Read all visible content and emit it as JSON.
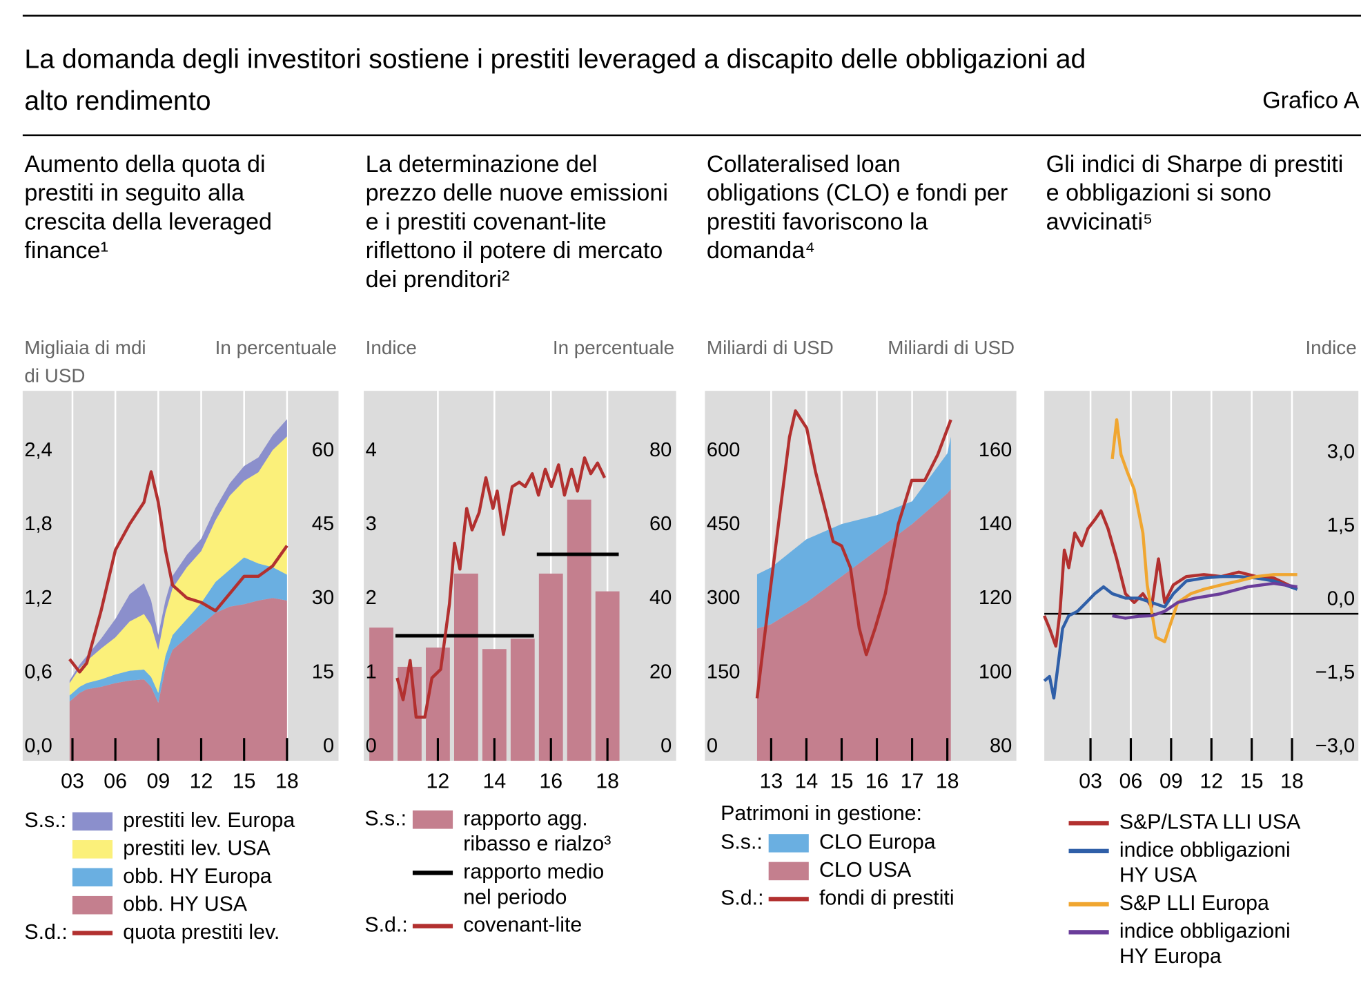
{
  "title": "La domanda degli investitori sostiene i prestiti leveraged a discapito delle obbligazioni ad alto rendimento",
  "label": "Grafico A",
  "chart_data": [
    {
      "type": "stacked-area",
      "title": "Aumento della quota di prestiti in seguito alla crescita della leveraged finance¹",
      "y_label": "Migliaia di mdi di USD",
      "y2_label": "In percentuale",
      "xlim": [
        1999.52,
        2021.6
      ],
      "xticks": [
        {
          "value": 2003,
          "label": "03"
        },
        {
          "value": 2006,
          "label": "06"
        },
        {
          "value": 2009,
          "label": "09"
        },
        {
          "value": 2012,
          "label": "12"
        },
        {
          "value": 2015,
          "label": "15"
        },
        {
          "value": 2018,
          "label": "18"
        }
      ],
      "ylim": [
        0,
        3.0
      ],
      "yticks": [
        {
          "value": 0,
          "label": "0,0"
        },
        {
          "value": 0.6,
          "label": "0,6"
        },
        {
          "value": 1.2,
          "label": "1,2"
        },
        {
          "value": 1.8,
          "label": "1,8"
        },
        {
          "value": 2.4,
          "label": "2,4"
        }
      ],
      "y2lim": [
        0,
        75
      ],
      "y2ticks": [
        0,
        15,
        30,
        45,
        60
      ],
      "grid": true,
      "legend_prefixes": {
        "y": "S.s.:",
        "y2": "S.d.:"
      },
      "series": [
        {
          "name": "prestiti lev. Europa",
          "kind": "area",
          "color": "#8b8fcc",
          "x": [
            2002.8,
            2003.5,
            2004,
            2005,
            2006,
            2007,
            2008,
            2008.5,
            2009,
            2009.5,
            2010,
            2011,
            2012,
            2013,
            2014,
            2015,
            2016,
            2017,
            2018
          ],
          "values": [
            0.02,
            0.03,
            0.04,
            0.08,
            0.15,
            0.22,
            0.25,
            0.2,
            0.12,
            0.1,
            0.1,
            0.1,
            0.1,
            0.1,
            0.1,
            0.12,
            0.12,
            0.12,
            0.14
          ]
        },
        {
          "name": "prestiti lev. USA",
          "kind": "area",
          "color": "#fbf07a",
          "x": [
            2002.8,
            2003.5,
            2004,
            2005,
            2006,
            2007,
            2008,
            2008.5,
            2009,
            2009.5,
            2010,
            2011,
            2012,
            2013,
            2014,
            2015,
            2016,
            2017,
            2018
          ],
          "values": [
            0.1,
            0.15,
            0.18,
            0.25,
            0.3,
            0.4,
            0.45,
            0.42,
            0.35,
            0.35,
            0.38,
            0.42,
            0.42,
            0.5,
            0.6,
            0.62,
            0.74,
            0.95,
            1.12
          ]
        },
        {
          "name": "obb. HY Europa",
          "kind": "area",
          "color": "#6aafe1",
          "x": [
            2002.8,
            2003.5,
            2004,
            2005,
            2006,
            2007,
            2008,
            2008.5,
            2009,
            2009.5,
            2010,
            2011,
            2012,
            2013,
            2014,
            2015,
            2016,
            2017,
            2018
          ],
          "values": [
            0.05,
            0.05,
            0.05,
            0.06,
            0.07,
            0.08,
            0.08,
            0.08,
            0.08,
            0.1,
            0.12,
            0.15,
            0.18,
            0.25,
            0.3,
            0.38,
            0.3,
            0.25,
            0.21
          ]
        },
        {
          "name": "obb. HY USA",
          "kind": "area",
          "color": "#c47f8e",
          "x": [
            2002.8,
            2003.5,
            2004,
            2005,
            2006,
            2007,
            2008,
            2008.5,
            2009,
            2009.5,
            2010,
            2011,
            2012,
            2013,
            2014,
            2015,
            2016,
            2017,
            2018
          ],
          "values": [
            0.48,
            0.55,
            0.58,
            0.6,
            0.63,
            0.65,
            0.66,
            0.6,
            0.47,
            0.75,
            0.9,
            1.0,
            1.1,
            1.2,
            1.25,
            1.27,
            1.3,
            1.32,
            1.3
          ]
        },
        {
          "name": "quota prestiti lev.",
          "kind": "line",
          "axis": "y2",
          "color": "#b2302f",
          "x": [
            2002.8,
            2003.5,
            2004,
            2005,
            2006,
            2007,
            2008,
            2008.5,
            2009,
            2009.5,
            2010,
            2011,
            2012,
            2013,
            2014,
            2015,
            2016,
            2017,
            2018
          ],
          "values": [
            20.6,
            18,
            19.8,
            30.4,
            42.7,
            48,
            52.4,
            58.6,
            52.4,
            42.7,
            35.6,
            33,
            32.1,
            30.4,
            33.9,
            37.4,
            37.4,
            39.5,
            43.6
          ]
        }
      ]
    },
    {
      "type": "bar",
      "title": "La determinazione del prezzo delle nuove emissioni e i prestiti covenant-lite riflettono il potere di mercato dei prenditori²",
      "y_label": "Indice",
      "y2_label": "In percentuale",
      "xlim": [
        2009.38,
        2020.43
      ],
      "xticks": [
        {
          "value": 2012,
          "label": "12"
        },
        {
          "value": 2014,
          "label": "14"
        },
        {
          "value": 2016,
          "label": "16"
        },
        {
          "value": 2018,
          "label": "18"
        }
      ],
      "ylim": [
        0,
        5
      ],
      "yticks": [
        0,
        1,
        2,
        3,
        4
      ],
      "y2lim": [
        0,
        100
      ],
      "y2ticks": [
        0,
        20,
        40,
        60,
        80
      ],
      "grid": true,
      "legend_prefixes": {
        "y": "S.s.:",
        "y2": "S.d.:"
      },
      "series": [
        {
          "name": "rapporto agg. ribasso e rialzo³",
          "kind": "bar",
          "color": "#c47f8e",
          "x": [
            2010,
            2011,
            2012,
            2013,
            2014,
            2015,
            2016,
            2017,
            2018
          ],
          "values": [
            1.8,
            1.27,
            1.53,
            2.53,
            1.51,
            1.65,
            2.53,
            3.53,
            2.29
          ]
        },
        {
          "name": "rapporto medio nel periodo",
          "kind": "line",
          "color": "#000000",
          "x": [
            2010.5,
            2015.4,
            null,
            2015.5,
            2018.4
          ],
          "values": [
            1.69,
            1.69,
            null,
            2.79,
            2.79
          ]
        },
        {
          "name": "covenant-lite",
          "kind": "line",
          "axis": "y2",
          "color": "#b2302f",
          "x": [
            2010.56,
            2010.77,
            2011.02,
            2011.23,
            2011.54,
            2011.79,
            2012.1,
            2012.41,
            2012.59,
            2012.78,
            2013.02,
            2013.21,
            2013.46,
            2013.7,
            2013.95,
            2014.1,
            2014.32,
            2014.63,
            2014.88,
            2015.09,
            2015.34,
            2015.56,
            2015.8,
            2016.02,
            2016.27,
            2016.48,
            2016.73,
            2016.94,
            2017.19,
            2017.41,
            2017.65,
            2017.9
          ],
          "values": [
            22.4,
            16.5,
            27.1,
            11.8,
            11.8,
            22.4,
            24.7,
            42.4,
            58.8,
            51.8,
            68.2,
            62.4,
            67.1,
            76.5,
            68.2,
            72.9,
            61.2,
            74.1,
            75.3,
            74.1,
            77.6,
            71.8,
            78.8,
            74.1,
            80,
            71.8,
            78.8,
            72.9,
            81.9,
            77.6,
            80.5,
            76.5
          ]
        }
      ]
    },
    {
      "type": "stacked-area",
      "title": "Collateralised loan obligations (CLO) e fondi per prestiti favoriscono la domanda⁴",
      "y_label": "Miliardi di USD",
      "y2_label": "Miliardi di USD",
      "xlim": [
        2011.12,
        2019.96
      ],
      "xticks": [
        {
          "value": 2013,
          "label": "13"
        },
        {
          "value": 2014,
          "label": "14"
        },
        {
          "value": 2015,
          "label": "15"
        },
        {
          "value": 2016,
          "label": "16"
        },
        {
          "value": 2017,
          "label": "17"
        },
        {
          "value": 2018,
          "label": "18"
        }
      ],
      "ylim": [
        0,
        750
      ],
      "yticks": [
        0,
        150,
        300,
        450,
        600
      ],
      "y2lim": [
        80,
        180
      ],
      "y2ticks": [
        80,
        100,
        120,
        140,
        160
      ],
      "grid": true,
      "legend_title": "Patrimoni in gestione:",
      "legend_prefixes": {
        "y": "S.s.:",
        "y2": "S.d.:"
      },
      "series": [
        {
          "name": "CLO Europa",
          "kind": "area",
          "color": "#6aafe1",
          "x": [
            2012.6,
            2013,
            2014,
            2015,
            2016,
            2017,
            2018,
            2018.1
          ],
          "values": [
            110,
            115,
            128,
            106,
            71,
            46,
            81,
            106
          ]
        },
        {
          "name": "CLO USA",
          "kind": "area",
          "color": "#c47f8e",
          "x": [
            2012.6,
            2013,
            2014,
            2015,
            2016,
            2017,
            2018,
            2018.1
          ],
          "values": [
            268,
            277,
            321,
            374,
            427,
            480,
            542,
            551
          ]
        },
        {
          "name": "fondi di prestiti",
          "kind": "line",
          "axis": "y2",
          "color": "#b2302f",
          "x": [
            2012.6,
            2012.9,
            2013.27,
            2013.52,
            2013.69,
            2014.01,
            2014.26,
            2014.51,
            2014.76,
            2015.0,
            2015.25,
            2015.5,
            2015.7,
            2015.95,
            2016.24,
            2016.61,
            2016.99,
            2017.36,
            2017.73,
            2018.1
          ],
          "values": [
            96.9,
            120.5,
            148.7,
            167.5,
            174.6,
            169.9,
            158.1,
            148.7,
            139.3,
            138.1,
            132.2,
            115.8,
            108.7,
            115.8,
            125.2,
            144,
            155.8,
            155.8,
            162.8,
            172.2
          ]
        }
      ]
    },
    {
      "type": "line",
      "title": "Gli indici di Sharpe di prestiti e obbligazioni si sono avvicinati⁵",
      "y_label": "Indice",
      "yaxis_side": "right",
      "xlim": [
        1999.56,
        2022.94
      ],
      "xticks": [
        {
          "value": 2003,
          "label": "03"
        },
        {
          "value": 2006,
          "label": "06"
        },
        {
          "value": 2009,
          "label": "09"
        },
        {
          "value": 2012,
          "label": "12"
        },
        {
          "value": 2015,
          "label": "15"
        },
        {
          "value": 2018,
          "label": "18"
        }
      ],
      "ylim": [
        -3.0,
        4.55
      ],
      "yticks": [
        {
          "value": -3.0,
          "label": "−3,0"
        },
        {
          "value": -1.5,
          "label": "−1,5"
        },
        {
          "value": 0,
          "label": "0,0"
        },
        {
          "value": 1.5,
          "label": "1,5"
        },
        {
          "value": 3.0,
          "label": "3,0"
        }
      ],
      "reference_line": 0,
      "grid": true,
      "series": [
        {
          "name": "S&P/LSTA LLI USA",
          "kind": "line",
          "color": "#b2302f",
          "x": [
            1999.56,
            1999.95,
            2000.42,
            2000.73,
            2001.05,
            2001.38,
            2001.83,
            2002.35,
            2002.81,
            2003.32,
            2003.78,
            2004.3,
            2004.95,
            2005.6,
            2006.25,
            2006.9,
            2007.55,
            2008.06,
            2008.52,
            2009.17,
            2010.14,
            2011.44,
            2012.74,
            2014.04,
            2015.34,
            2016.64,
            2018.39
          ],
          "values": [
            -0.04,
            -0.3,
            -0.66,
            0.05,
            1.3,
            0.94,
            1.65,
            1.39,
            1.74,
            1.92,
            2.1,
            1.74,
            1.12,
            0.41,
            0.23,
            0.41,
            0.14,
            1.12,
            0.23,
            0.59,
            0.76,
            0.8,
            0.76,
            0.85,
            0.76,
            0.73,
            0.5
          ]
        },
        {
          "name": "indice obbligazioni HY USA",
          "kind": "line",
          "color": "#2f5fa8",
          "x": [
            1999.56,
            1999.95,
            2000.27,
            2000.6,
            2000.92,
            2001.38,
            2002.03,
            2002.68,
            2003.32,
            2003.97,
            2004.62,
            2005.6,
            2006.57,
            2007.55,
            2008.52,
            2009.17,
            2010.14,
            2011.44,
            2012.74,
            2014.04,
            2015.34,
            2016.64,
            2018.39
          ],
          "values": [
            -1.37,
            -1.28,
            -1.72,
            -1.01,
            -0.3,
            -0.04,
            0.05,
            0.23,
            0.41,
            0.55,
            0.41,
            0.32,
            0.32,
            0.23,
            0.14,
            0.41,
            0.67,
            0.73,
            0.76,
            0.76,
            0.73,
            0.67,
            0.5
          ]
        },
        {
          "name": "S&P LLI Europa",
          "kind": "line",
          "color": "#f0a630",
          "x": [
            2004.62,
            2004.95,
            2005.27,
            2005.73,
            2006.25,
            2006.9,
            2007.22,
            2007.55,
            2007.87,
            2008.52,
            2008.84,
            2009.49,
            2010.47,
            2011.44,
            2012.74,
            2014.04,
            2015.34,
            2016.64,
            2018.39
          ],
          "values": [
            3.16,
            3.96,
            3.25,
            2.9,
            2.54,
            1.65,
            0.59,
            0.05,
            -0.48,
            -0.57,
            -0.3,
            0.23,
            0.41,
            0.5,
            0.59,
            0.67,
            0.76,
            0.8,
            0.8
          ]
        },
        {
          "name": "indice obbligazioni HY Europa",
          "kind": "line",
          "color": "#6a3d9a",
          "x": [
            2004.62,
            2005.6,
            2006.57,
            2007.55,
            2008.52,
            2009.49,
            2010.79,
            2012.74,
            2014.69,
            2016.64,
            2018.39
          ],
          "values": [
            -0.04,
            -0.09,
            -0.05,
            -0.04,
            0.05,
            0.23,
            0.32,
            0.41,
            0.55,
            0.62,
            0.55
          ]
        }
      ]
    }
  ]
}
